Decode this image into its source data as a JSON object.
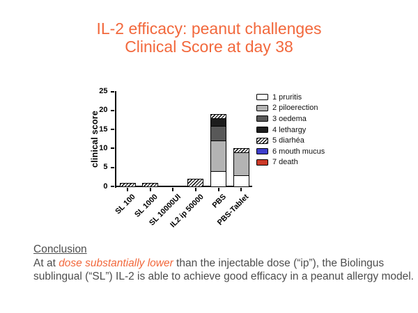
{
  "slide": {
    "title_line1": "IL-2 efficacy: peanut challenges",
    "title_line2": "Clinical Score at day 38",
    "title_color": "#F2683C"
  },
  "chart_data": {
    "type": "bar",
    "stacked": true,
    "title": "",
    "xlabel": "",
    "ylabel": "clinical score",
    "ylim": [
      0,
      25
    ],
    "yticks": [
      0,
      5,
      10,
      15,
      20,
      25
    ],
    "grid": false,
    "legend_position": "right",
    "categories": [
      "SL 100",
      "SL 1000",
      "SL 10000UI",
      "IL2 ip 50000",
      "PBS",
      "PBS-Tablet"
    ],
    "series": [
      {
        "name": "1 pruritis",
        "color": "#FFFFFF",
        "pattern": "solid",
        "values": [
          0,
          0,
          0,
          0,
          4,
          3
        ]
      },
      {
        "name": "2 piloerection",
        "color": "#B3B3B3",
        "pattern": "solid",
        "values": [
          0,
          0,
          0,
          0,
          8,
          6
        ]
      },
      {
        "name": "3 oedema",
        "color": "#585858",
        "pattern": "solid",
        "values": [
          0,
          0,
          0,
          0,
          4,
          0
        ]
      },
      {
        "name": "4 lethargy",
        "color": "#1C1C1C",
        "pattern": "solid",
        "values": [
          0,
          0,
          0,
          0,
          2,
          0
        ]
      },
      {
        "name": "5 diarhéa",
        "color": "#FFFFFF",
        "pattern": "diagonal-hatch",
        "values": [
          1,
          1,
          0,
          2,
          1,
          1
        ]
      },
      {
        "name": "6 mouth mucus",
        "color": "#3E3ECC",
        "pattern": "solid",
        "values": [
          0,
          0,
          0,
          0,
          0,
          0
        ]
      },
      {
        "name": "7 death",
        "color": "#CC3A28",
        "pattern": "solid",
        "values": [
          0,
          0,
          0,
          0,
          0,
          0
        ]
      }
    ],
    "totals": [
      1,
      1,
      0,
      2,
      19,
      10
    ]
  },
  "conclusion": {
    "heading": "Conclusion",
    "before_highlight": "At at ",
    "highlight": "dose substantially lower",
    "after_highlight": " than the injectable dose (“ip”), the Biolingus sublingual (“SL”) IL-2 is able to achieve good efficacy in a peanut allergy model.",
    "highlight_color": "#F2683C",
    "text_color": "#4D4D4D"
  }
}
